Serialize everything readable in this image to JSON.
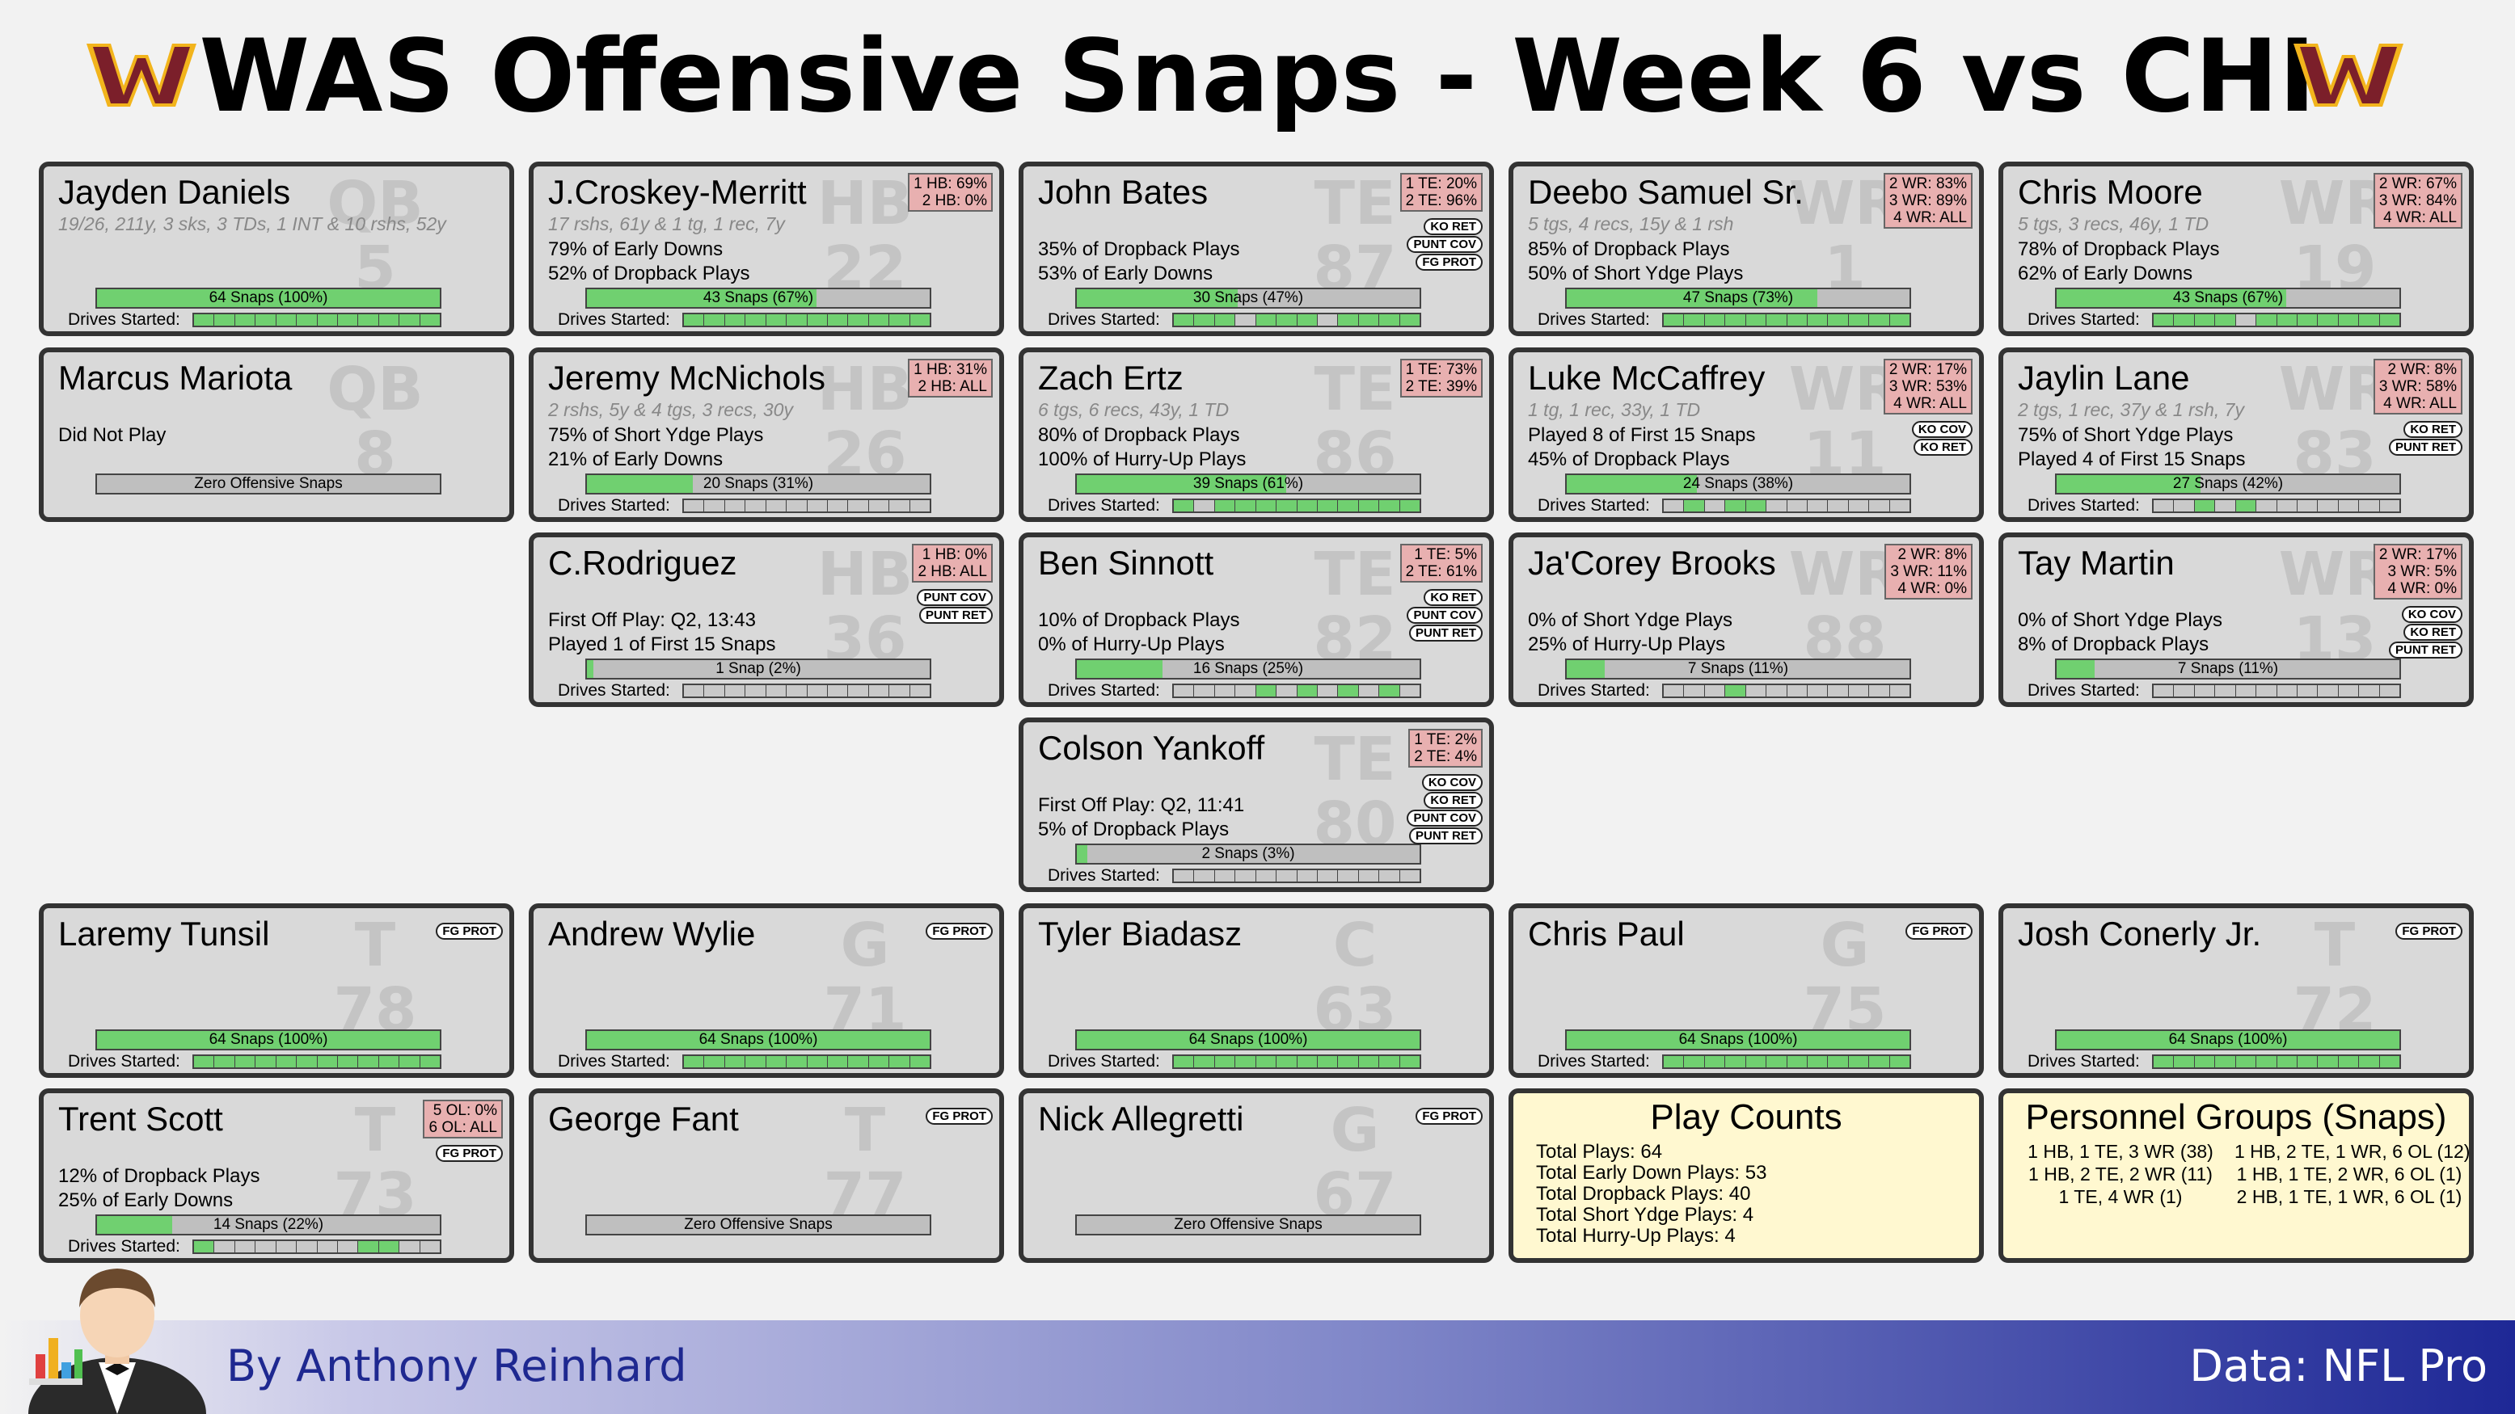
{
  "title": "WAS Offensive Snaps - Week 6 vs CHI",
  "colors": {
    "bar_fill": "#70d070",
    "card_bg": "#d9d9d9",
    "pct_badge": "#e8b0b0",
    "info_bg": "#fff8d0",
    "logo_red": "#7b1f2a",
    "logo_gold": "#f2b41c"
  },
  "icons": {
    "logo": "team-logo",
    "butler": "butler-chart-icon"
  },
  "drives_label": "Drives Started:",
  "players": [
    {
      "name": "Jayden Daniels",
      "bg_pos": "QB",
      "bg_num": "5",
      "sub": "19/26, 211y, 3 sks, 3 TDs, 1 INT & 10 rshs, 52y",
      "stats": [],
      "bar_text": "64 Snaps (100%)",
      "bar_value": 100,
      "drives": [
        1,
        1,
        1,
        1,
        1,
        1,
        1,
        1,
        1,
        1,
        1,
        1
      ],
      "pct": [],
      "pills": []
    },
    {
      "name": "J.Croskey-Merritt",
      "bg_pos": "HB",
      "bg_num": "22",
      "sub": "17 rshs, 61y & 1 tg, 1 rec, 7y",
      "stats": [
        "79% of Early Downs",
        "52% of Dropback Plays"
      ],
      "bar_text": "43 Snaps (67%)",
      "bar_value": 67,
      "drives": [
        1,
        1,
        1,
        1,
        1,
        1,
        1,
        1,
        1,
        1,
        1,
        1
      ],
      "pct": [
        "1 HB: 69%",
        "2 HB: 0%"
      ],
      "pills": []
    },
    {
      "name": "John Bates",
      "bg_pos": "TE",
      "bg_num": "87",
      "sub": "",
      "stats": [
        "35% of Dropback Plays",
        "53% of Early Downs"
      ],
      "bar_text": "30 Snaps (47%)",
      "bar_value": 47,
      "drives": [
        1,
        1,
        1,
        0,
        1,
        1,
        1,
        0,
        1,
        1,
        1,
        1
      ],
      "pct": [
        "1 TE: 20%",
        "2 TE: 96%"
      ],
      "pills": [
        "KO RET",
        "PUNT COV",
        "FG PROT"
      ]
    },
    {
      "name": "Deebo Samuel Sr.",
      "bg_pos": "WR",
      "bg_num": "1",
      "sub": "5 tgs, 4 recs, 15y & 1 rsh",
      "stats": [
        "85% of Dropback Plays",
        "50% of Short Ydge Plays"
      ],
      "bar_text": "47 Snaps (73%)",
      "bar_value": 73,
      "drives": [
        1,
        1,
        1,
        1,
        1,
        1,
        1,
        1,
        1,
        1,
        1,
        1
      ],
      "pct": [
        "2 WR: 83%",
        "3 WR: 89%",
        "4 WR: ALL"
      ],
      "pills": []
    },
    {
      "name": "Chris Moore",
      "bg_pos": "WR",
      "bg_num": "19",
      "sub": "5 tgs, 3 recs, 46y, 1 TD",
      "stats": [
        "78% of Dropback Plays",
        "62% of Early Downs"
      ],
      "bar_text": "43 Snaps (67%)",
      "bar_value": 67,
      "drives": [
        1,
        1,
        1,
        1,
        0,
        1,
        1,
        1,
        1,
        1,
        1,
        1
      ],
      "pct": [
        "2 WR: 67%",
        "3 WR: 84%",
        "4 WR: ALL"
      ],
      "pills": []
    },
    {
      "name": "Marcus Mariota",
      "bg_pos": "QB",
      "bg_num": "8",
      "sub": "",
      "stats": [
        "Did Not Play"
      ],
      "bar_text": "Zero Offensive Snaps",
      "bar_value": 0,
      "drives": [],
      "pct": [],
      "pills": []
    },
    {
      "name": "Jeremy McNichols",
      "bg_pos": "HB",
      "bg_num": "26",
      "sub": "2 rshs, 5y & 4 tgs, 3 recs, 30y",
      "stats": [
        "75% of Short Ydge Plays",
        "21% of Early Downs"
      ],
      "bar_text": "20 Snaps (31%)",
      "bar_value": 31,
      "drives": [
        0,
        0,
        0,
        0,
        0,
        0,
        0,
        0,
        0,
        0,
        0,
        0
      ],
      "pct": [
        "1 HB: 31%",
        "2 HB: ALL"
      ],
      "pills": []
    },
    {
      "name": "Zach Ertz",
      "bg_pos": "TE",
      "bg_num": "86",
      "sub": "6 tgs, 6 recs, 43y, 1 TD",
      "stats": [
        "80% of Dropback Plays",
        "100% of Hurry-Up Plays"
      ],
      "bar_text": "39 Snaps (61%)",
      "bar_value": 61,
      "drives": [
        1,
        0,
        1,
        1,
        1,
        1,
        1,
        1,
        1,
        1,
        1,
        1
      ],
      "pct": [
        "1 TE: 73%",
        "2 TE: 39%"
      ],
      "pills": []
    },
    {
      "name": "Luke McCaffrey",
      "bg_pos": "WR",
      "bg_num": "11",
      "sub": "1 tg, 1 rec, 33y, 1 TD",
      "stats": [
        "Played 8 of First 15 Snaps",
        "45% of Dropback Plays"
      ],
      "bar_text": "24 Snaps (38%)",
      "bar_value": 38,
      "drives": [
        0,
        1,
        0,
        1,
        1,
        0,
        0,
        0,
        0,
        0,
        0,
        0
      ],
      "pct": [
        "2 WR: 17%",
        "3 WR: 53%",
        "4 WR: ALL"
      ],
      "pills": [
        "KO COV",
        "KO RET"
      ]
    },
    {
      "name": "Jaylin Lane",
      "bg_pos": "WR",
      "bg_num": "83",
      "sub": "2 tgs, 1 rec, 37y & 1 rsh, 7y",
      "stats": [
        "75% of Short Ydge Plays",
        "Played 4 of First 15 Snaps"
      ],
      "bar_text": "27 Snaps (42%)",
      "bar_value": 42,
      "drives": [
        0,
        0,
        1,
        0,
        1,
        0,
        0,
        0,
        0,
        0,
        0,
        0
      ],
      "pct": [
        "2 WR: 8%",
        "3 WR: 58%",
        "4 WR: ALL"
      ],
      "pills": [
        "KO RET",
        "PUNT RET"
      ]
    },
    {
      "name": "C.Rodriguez",
      "bg_pos": "HB",
      "bg_num": "36",
      "sub": "",
      "stats": [
        "First Off Play: Q2, 13:43",
        "Played 1 of First 15 Snaps"
      ],
      "bar_text": "1 Snap (2%)",
      "bar_value": 2,
      "drives": [
        0,
        0,
        0,
        0,
        0,
        0,
        0,
        0,
        0,
        0,
        0,
        0
      ],
      "pct": [
        "1 HB: 0%",
        "2 HB: ALL"
      ],
      "pills": [
        "PUNT COV",
        "PUNT RET"
      ]
    },
    {
      "name": "Ben Sinnott",
      "bg_pos": "TE",
      "bg_num": "82",
      "sub": "",
      "stats": [
        "10% of Dropback Plays",
        "0% of Hurry-Up Plays"
      ],
      "bar_text": "16 Snaps (25%)",
      "bar_value": 25,
      "drives": [
        0,
        0,
        0,
        0,
        1,
        0,
        1,
        0,
        1,
        0,
        1,
        0
      ],
      "pct": [
        "1 TE: 5%",
        "2 TE: 61%"
      ],
      "pills": [
        "KO RET",
        "PUNT COV",
        "PUNT RET"
      ]
    },
    {
      "name": "Ja'Corey Brooks",
      "bg_pos": "WR",
      "bg_num": "88",
      "sub": "",
      "stats": [
        "0% of Short Ydge Plays",
        "25% of Hurry-Up Plays"
      ],
      "bar_text": "7 Snaps (11%)",
      "bar_value": 11,
      "drives": [
        0,
        0,
        0,
        1,
        0,
        0,
        0,
        0,
        0,
        0,
        0,
        0
      ],
      "pct": [
        "2 WR: 8%",
        "3 WR: 11%",
        "4 WR: 0%"
      ],
      "pills": []
    },
    {
      "name": "Tay Martin",
      "bg_pos": "WR",
      "bg_num": "13",
      "sub": "",
      "stats": [
        "0% of Short Ydge Plays",
        "8% of Dropback Plays"
      ],
      "bar_text": "7 Snaps (11%)",
      "bar_value": 11,
      "drives": [
        0,
        0,
        0,
        0,
        0,
        0,
        0,
        0,
        0,
        0,
        0,
        0
      ],
      "pct": [
        "2 WR: 17%",
        "3 WR: 5%",
        "4 WR: 0%"
      ],
      "pills": [
        "KO COV",
        "KO RET",
        "PUNT RET"
      ]
    },
    {
      "name": "Colson Yankoff",
      "bg_pos": "TE",
      "bg_num": "80",
      "sub": "",
      "stats": [
        "First Off Play: Q2, 11:41",
        "5% of Dropback Plays"
      ],
      "bar_text": "2 Snaps (3%)",
      "bar_value": 3,
      "drives": [
        0,
        0,
        0,
        0,
        0,
        0,
        0,
        0,
        0,
        0,
        0,
        0
      ],
      "pct": [
        "1 TE: 2%",
        "2 TE: 4%"
      ],
      "pills": [
        "KO COV",
        "KO RET",
        "PUNT COV",
        "PUNT RET"
      ]
    },
    {
      "name": "Laremy Tunsil",
      "bg_pos": "T",
      "bg_num": "78",
      "sub": "",
      "stats": [],
      "bar_text": "64 Snaps (100%)",
      "bar_value": 100,
      "drives": [
        1,
        1,
        1,
        1,
        1,
        1,
        1,
        1,
        1,
        1,
        1,
        1
      ],
      "pct": [],
      "pills": [
        "FG PROT"
      ]
    },
    {
      "name": "Andrew Wylie",
      "bg_pos": "G",
      "bg_num": "71",
      "sub": "",
      "stats": [],
      "bar_text": "64 Snaps (100%)",
      "bar_value": 100,
      "drives": [
        1,
        1,
        1,
        1,
        1,
        1,
        1,
        1,
        1,
        1,
        1,
        1
      ],
      "pct": [],
      "pills": [
        "FG PROT"
      ]
    },
    {
      "name": "Tyler Biadasz",
      "bg_pos": "C",
      "bg_num": "63",
      "sub": "",
      "stats": [],
      "bar_text": "64 Snaps (100%)",
      "bar_value": 100,
      "drives": [
        1,
        1,
        1,
        1,
        1,
        1,
        1,
        1,
        1,
        1,
        1,
        1
      ],
      "pct": [],
      "pills": []
    },
    {
      "name": "Chris Paul",
      "bg_pos": "G",
      "bg_num": "75",
      "sub": "",
      "stats": [],
      "bar_text": "64 Snaps (100%)",
      "bar_value": 100,
      "drives": [
        1,
        1,
        1,
        1,
        1,
        1,
        1,
        1,
        1,
        1,
        1,
        1
      ],
      "pct": [],
      "pills": [
        "FG PROT"
      ]
    },
    {
      "name": "Josh Conerly Jr.",
      "bg_pos": "T",
      "bg_num": "72",
      "sub": "",
      "stats": [],
      "bar_text": "64 Snaps (100%)",
      "bar_value": 100,
      "drives": [
        1,
        1,
        1,
        1,
        1,
        1,
        1,
        1,
        1,
        1,
        1,
        1
      ],
      "pct": [],
      "pills": [
        "FG PROT"
      ]
    },
    {
      "name": "Trent Scott",
      "bg_pos": "T",
      "bg_num": "73",
      "sub": "",
      "stats": [
        "12% of Dropback Plays",
        "25% of Early Downs"
      ],
      "bar_text": "14 Snaps (22%)",
      "bar_value": 22,
      "drives": [
        1,
        0,
        0,
        0,
        0,
        0,
        0,
        0,
        1,
        1,
        0,
        0
      ],
      "pct": [
        "5 OL: 0%",
        "6 OL: ALL"
      ],
      "pills": [
        "FG PROT"
      ]
    },
    {
      "name": "George Fant",
      "bg_pos": "T",
      "bg_num": "77",
      "sub": "",
      "stats": [],
      "bar_text": "Zero Offensive Snaps",
      "bar_value": 0,
      "drives": [],
      "pct": [],
      "pills": [
        "FG PROT"
      ]
    },
    {
      "name": "Nick Allegretti",
      "bg_pos": "G",
      "bg_num": "67",
      "sub": "",
      "stats": [],
      "bar_text": "Zero Offensive Snaps",
      "bar_value": 0,
      "drives": [],
      "pct": [],
      "pills": [
        "FG PROT"
      ]
    }
  ],
  "play_counts": {
    "title": "Play Counts",
    "lines": [
      "Total Plays: 64",
      "Total Early Down Plays: 53",
      "Total Dropback Plays: 40",
      "Total Short Ydge Plays: 4",
      "Total Hurry-Up Plays: 4"
    ]
  },
  "personnel": {
    "title": "Personnel Groups (Snaps)",
    "col1": [
      "1 HB, 1 TE, 3 WR (38)",
      "1 HB, 2 TE, 2 WR (11)",
      "1 TE, 4 WR (1)"
    ],
    "col2": [
      "1 HB, 2 TE, 1 WR, 6 OL (12)",
      "1 HB, 1 TE, 2 WR, 6 OL (1)",
      "2 HB, 1 TE, 1 WR, 6 OL (1)"
    ]
  },
  "footer": {
    "byline": "By Anthony Reinhard",
    "source": "Data: NFL Pro"
  }
}
